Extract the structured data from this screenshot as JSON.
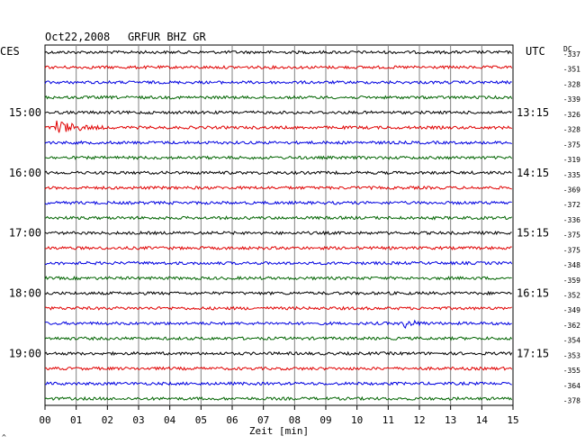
{
  "header": {
    "date": "Oct22,2008",
    "station": "GRFUR BHZ GR",
    "left_tz": "CES",
    "right_tz": "UTC",
    "dc_label": "DC"
  },
  "footer": {
    "corner_mark": "^"
  },
  "colors": {
    "trace_cycle": [
      "#000000",
      "#e00000",
      "#0000e0",
      "#006400"
    ],
    "grid": "#808080",
    "frame": "#000000"
  },
  "chart_data": {
    "type": "line",
    "xlabel": "Zeit [min]",
    "x_ticks": [
      "00",
      "01",
      "02",
      "03",
      "04",
      "05",
      "06",
      "07",
      "08",
      "09",
      "10",
      "11",
      "12",
      "13",
      "14",
      "15"
    ],
    "x_range": [
      0,
      15
    ],
    "grid": true,
    "traces_per_hour": 4,
    "left_hour_labels": [
      "15:00",
      "16:00",
      "17:00",
      "18:00",
      "19:00"
    ],
    "right_hour_labels": [
      "13:15",
      "14:15",
      "15:15",
      "16:15",
      "17:15"
    ],
    "hour_label_trace_index": [
      4,
      8,
      12,
      16,
      20
    ],
    "dc_offsets": [
      -337,
      -351,
      -328,
      -339,
      -326,
      -328,
      -375,
      -319,
      -335,
      -369,
      -372,
      -336,
      -375,
      -375,
      -348,
      -359,
      -352,
      -349,
      -362,
      -354,
      -353,
      -355,
      -364,
      -378
    ],
    "events": [
      {
        "trace": 5,
        "minute": 0.4,
        "amplitude": 8,
        "duration_min": 1.5
      },
      {
        "trace": 18,
        "minute": 11.6,
        "amplitude": 4,
        "duration_min": 0.8
      }
    ],
    "noise_amplitude": 1.6
  }
}
